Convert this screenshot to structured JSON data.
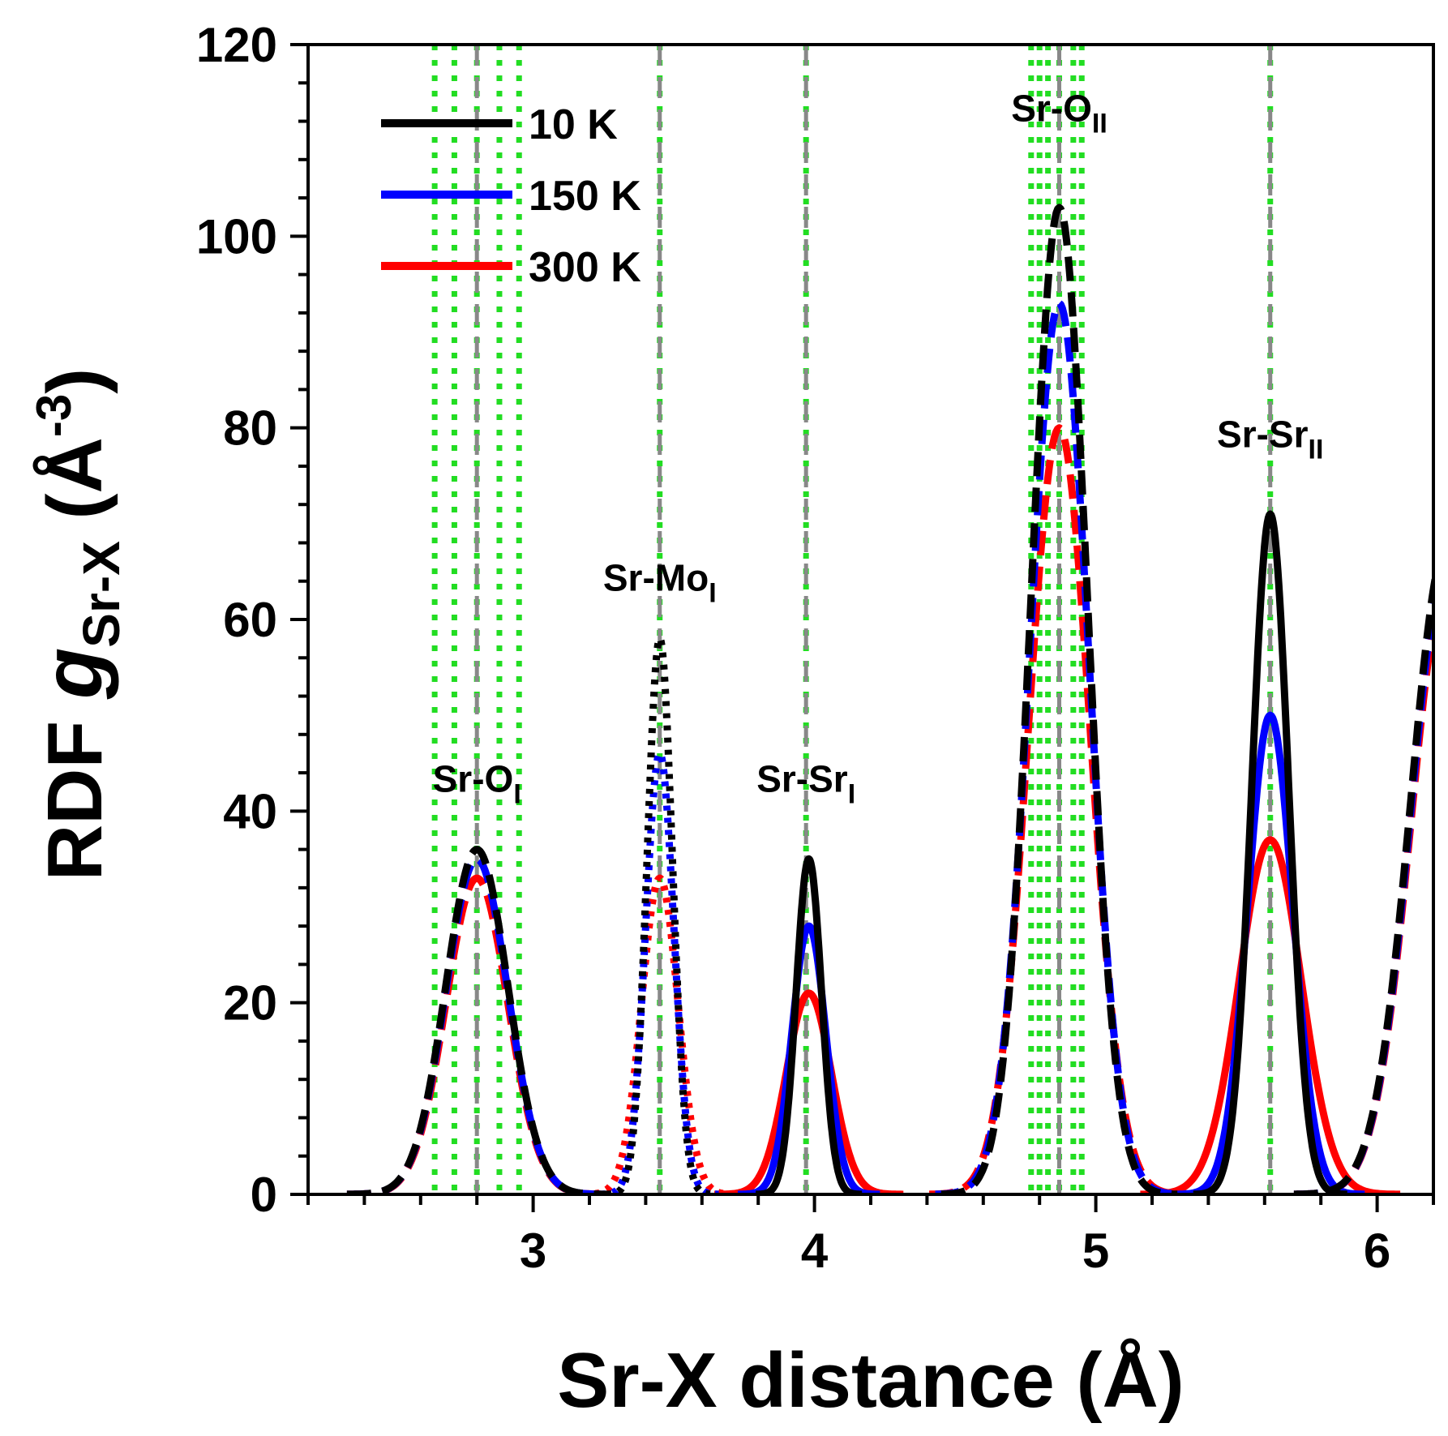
{
  "chart_data": {
    "type": "line",
    "xlabel": "Sr-X distance (Å)",
    "ylabel": "RDF g Sr-X (Å-3)",
    "xlim": [
      2.2,
      6.2
    ],
    "ylim": [
      0,
      120
    ],
    "x_ticks": [
      3,
      4,
      5,
      6
    ],
    "y_ticks": [
      0,
      20,
      40,
      60,
      80,
      100,
      120
    ],
    "grid": false,
    "legend_position": "top-left",
    "legend": [
      {
        "label": "10 K",
        "color": "#000000"
      },
      {
        "label": "150 K",
        "color": "#0000ff"
      },
      {
        "label": "300 K",
        "color": "#ff0000"
      }
    ],
    "peak_labels": [
      {
        "main": "Sr-O",
        "sub": "I",
        "x": 2.8,
        "y": 42
      },
      {
        "main": "Sr-Mo",
        "sub": "I",
        "x": 3.45,
        "y": 63
      },
      {
        "main": "Sr-Sr",
        "sub": "I",
        "x": 3.97,
        "y": 42
      },
      {
        "main": "Sr-O",
        "sub": "II",
        "x": 4.87,
        "y": 112
      },
      {
        "main": "Sr-Sr",
        "sub": "II",
        "x": 5.62,
        "y": 78
      }
    ],
    "reference_lines": {
      "dashed_gray": [
        2.8,
        3.45,
        3.97,
        4.87,
        5.62
      ],
      "dotted_green": [
        2.65,
        2.72,
        2.8,
        2.88,
        2.95,
        3.45,
        3.97,
        4.77,
        4.8,
        4.83,
        4.87,
        4.92,
        4.95,
        5.62
      ]
    },
    "peaks": [
      {
        "name": "Sr-OI",
        "style": "dashed",
        "center": 2.8,
        "heights": [
          36,
          35,
          33
        ],
        "widths": [
          0.11,
          0.11,
          0.11
        ]
      },
      {
        "name": "Sr-MoI",
        "style": "dotted",
        "center": 3.45,
        "heights": [
          58,
          46,
          33
        ],
        "widths": [
          0.045,
          0.05,
          0.065
        ]
      },
      {
        "name": "Sr-SrI",
        "style": "solid",
        "center": 3.98,
        "heights": [
          35,
          28,
          21
        ],
        "widths": [
          0.045,
          0.06,
          0.08
        ]
      },
      {
        "name": "Sr-OII",
        "style": "dashed",
        "center": 4.87,
        "heights": [
          103,
          93,
          80
        ],
        "widths": [
          0.1,
          0.105,
          0.11
        ]
      },
      {
        "name": "Sr-SrII",
        "style": "solid",
        "center": 5.62,
        "heights": [
          71,
          50,
          37
        ],
        "widths": [
          0.065,
          0.08,
          0.11
        ]
      },
      {
        "name": "next",
        "style": "dashed",
        "center": 6.25,
        "heights": [
          68,
          66,
          64
        ],
        "widths": [
          0.13,
          0.13,
          0.13
        ]
      }
    ],
    "series": [
      {
        "name": "10 K",
        "color": "#000000"
      },
      {
        "name": "150 K",
        "color": "#0000ff"
      },
      {
        "name": "300 K",
        "color": "#ff0000"
      }
    ]
  }
}
